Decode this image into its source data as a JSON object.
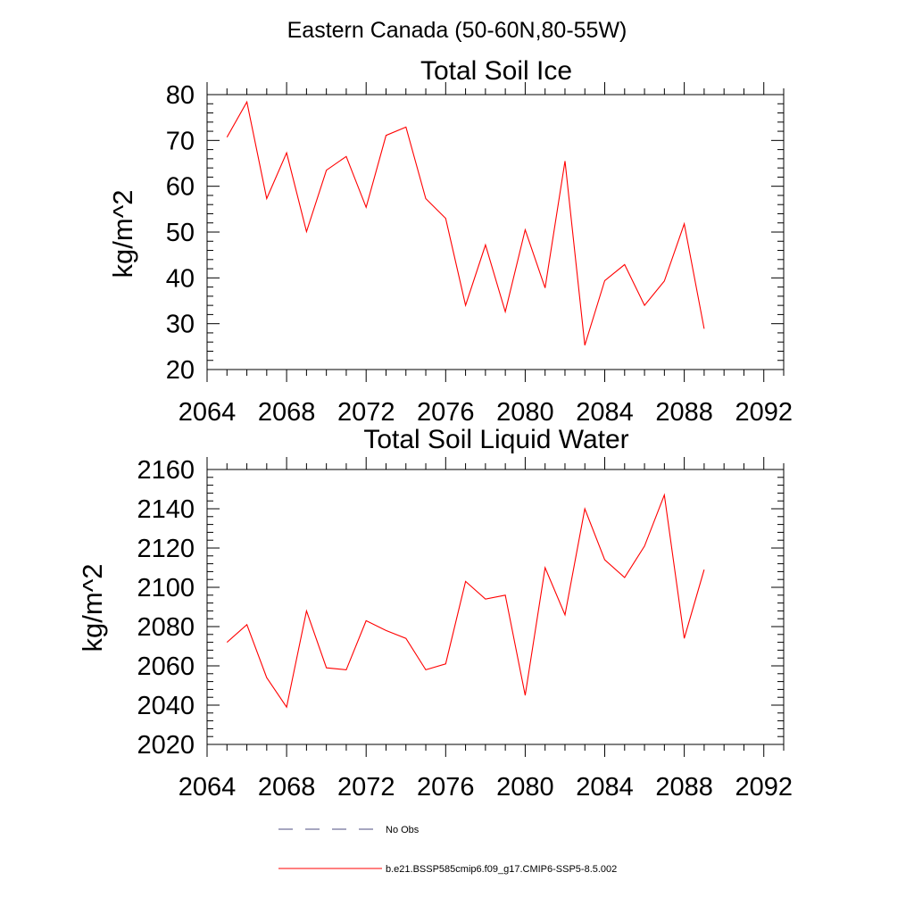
{
  "figure_title": "Eastern Canada (50-60N,80-55W)",
  "legend": {
    "entries": [
      {
        "label": "No Obs",
        "style": "dashed",
        "color": "#4d4d80"
      },
      {
        "label": "b.e21.BSSP585cmip6.f09_g17.CMIP6-SSP5-8.5.002",
        "style": "solid",
        "color": "#ff0000"
      }
    ]
  },
  "chart_data": [
    {
      "type": "line",
      "title": "Total Soil Ice",
      "xlabel": "",
      "ylabel": "kg/m^2",
      "xlim": [
        2064,
        2093
      ],
      "ylim": [
        20,
        80
      ],
      "xticks": [
        2064,
        2068,
        2072,
        2076,
        2080,
        2084,
        2088,
        2092
      ],
      "yticks": [
        20,
        30,
        40,
        50,
        60,
        70,
        80
      ],
      "grid": false,
      "series": [
        {
          "name": "b.e21.BSSP585cmip6.f09_g17.CMIP6-SSP5-8.5.002",
          "color": "#ff0000",
          "x": [
            2065,
            2066,
            2067,
            2068,
            2069,
            2070,
            2071,
            2072,
            2073,
            2074,
            2075,
            2076,
            2077,
            2078,
            2079,
            2080,
            2081,
            2082,
            2083,
            2084,
            2085,
            2086,
            2087,
            2088,
            2089
          ],
          "y": [
            70.7,
            78.4,
            57.3,
            67.3,
            50.1,
            63.5,
            66.5,
            55.4,
            71.1,
            72.9,
            57.3,
            53.0,
            34.0,
            47.2,
            32.6,
            50.5,
            37.8,
            65.5,
            25.3,
            39.4,
            42.9,
            34.0,
            39.3,
            51.8,
            28.9
          ]
        }
      ]
    },
    {
      "type": "line",
      "title": "Total Soil Liquid Water",
      "xlabel": "",
      "ylabel": "kg/m^2",
      "xlim": [
        2064,
        2093
      ],
      "ylim": [
        2020,
        2160
      ],
      "xticks": [
        2064,
        2068,
        2072,
        2076,
        2080,
        2084,
        2088,
        2092
      ],
      "yticks": [
        2020,
        2040,
        2060,
        2080,
        2100,
        2120,
        2140,
        2160
      ],
      "grid": false,
      "series": [
        {
          "name": "b.e21.BSSP585cmip6.f09_g17.CMIP6-SSP5-8.5.002",
          "color": "#ff0000",
          "x": [
            2065,
            2066,
            2067,
            2068,
            2069,
            2070,
            2071,
            2072,
            2073,
            2074,
            2075,
            2076,
            2077,
            2078,
            2079,
            2080,
            2081,
            2082,
            2083,
            2084,
            2085,
            2086,
            2087,
            2088,
            2089
          ],
          "y": [
            2072,
            2081,
            2054,
            2039,
            2088,
            2059,
            2058,
            2083,
            2078,
            2074,
            2058,
            2061,
            2103,
            2094,
            2096,
            2045,
            2110,
            2086,
            2140,
            2114,
            2105,
            2121,
            2147,
            2074,
            2109
          ]
        }
      ]
    }
  ]
}
